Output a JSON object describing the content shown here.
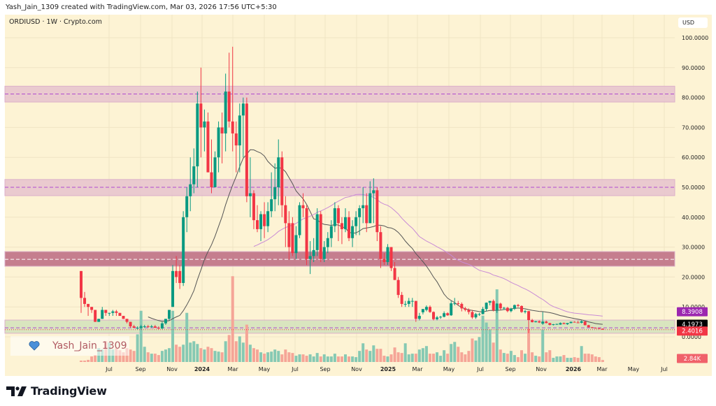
{
  "header": {
    "credit": "Yash_Jain_1309 created with TradingView.com, Mar 03, 2026 17:56 UTC+5:30",
    "symbol": "ORDIUSD · 1W · Crypto.com",
    "currency": "USD"
  },
  "watermark": {
    "text": "Yash_Jain_1309",
    "icon": "blue-heart-icon"
  },
  "footer": {
    "brand": "TradingView",
    "icon": "tradingview-logo-icon"
  },
  "colors": {
    "up": "#089981",
    "down": "#f23645",
    "up_volume": "#86c9b3",
    "down_volume": "#f5a597",
    "sma_fast": "#555555",
    "sma_slow": "#c98bd6",
    "background": "#fdf3d4"
  },
  "chart_data": {
    "type": "candlestick",
    "title": "ORDIUSD · 1W · Crypto.com",
    "ylabel": "USD",
    "ylim": [
      0,
      100
    ],
    "grid": true,
    "y_ticks": [
      "100.0000",
      "90.0000",
      "80.0000",
      "70.0000",
      "60.0000",
      "50.0000",
      "40.0000",
      "30.0000",
      "20.0000",
      "10.0000",
      "0.0000"
    ],
    "x_ticks": [
      "Jul",
      "Sep",
      "Nov",
      "2024",
      "Mar",
      "May",
      "Jul",
      "Sep",
      "Nov",
      "2025",
      "Mar",
      "May",
      "Jul",
      "Sep",
      "Nov",
      "2026",
      "Mar",
      "May",
      "Jul"
    ],
    "moving_averages": [
      {
        "period": 20,
        "color": "#555555",
        "last": "4.1973"
      },
      {
        "period": 50,
        "color": "#c98bd6",
        "last": "8.3908"
      }
    ],
    "last_price": "2.4016",
    "last_volume": "2.84K",
    "zones": [
      {
        "low": 78.5,
        "high": 83.8,
        "mid": 81.2,
        "fill": "#e8c6cf",
        "line": "#b04ad0"
      },
      {
        "low": 47.2,
        "high": 52.6,
        "mid": 50.0,
        "fill": "#e8c6cf",
        "line": "#b04ad0"
      },
      {
        "low": 23.6,
        "high": 28.5,
        "mid": 25.9,
        "fill": "#bf7287",
        "line": "#ffffff"
      },
      {
        "low": 1.2,
        "high": 5.6,
        "mid": 3.0,
        "fill": "#d6e4bd",
        "line": "#b04ad0"
      }
    ],
    "candles": [
      [
        22,
        22,
        8,
        13
      ],
      [
        13,
        15,
        10,
        11
      ],
      [
        11,
        11,
        7,
        10
      ],
      [
        10,
        10,
        8,
        9
      ],
      [
        9,
        9,
        5,
        5
      ],
      [
        5,
        6,
        5,
        6
      ],
      [
        6,
        10,
        6,
        9
      ],
      [
        9,
        9,
        7,
        8
      ],
      [
        8,
        8,
        7,
        8
      ],
      [
        8,
        9,
        7,
        8.5
      ],
      [
        8.5,
        9,
        7,
        8
      ],
      [
        8,
        8,
        7,
        7
      ],
      [
        7,
        7,
        6,
        6
      ],
      [
        6,
        6,
        4.5,
        5
      ],
      [
        5,
        5,
        3,
        3.5
      ],
      [
        3.5,
        4,
        3,
        3
      ],
      [
        3,
        3.5,
        2.5,
        3
      ],
      [
        3,
        4,
        2.5,
        3.5
      ],
      [
        3.5,
        4,
        3,
        3.5
      ],
      [
        3.5,
        4,
        3,
        3.3
      ],
      [
        3.3,
        4,
        3,
        3.5
      ],
      [
        3.5,
        4,
        3,
        3
      ],
      [
        3,
        3.5,
        2.5,
        2.8
      ],
      [
        2.8,
        5,
        2.5,
        4.5
      ],
      [
        4.5,
        6,
        4,
        6
      ],
      [
        6,
        8,
        5.5,
        9
      ],
      [
        10,
        24,
        10,
        22
      ],
      [
        22,
        27,
        18,
        20
      ],
      [
        22,
        24,
        16,
        18
      ],
      [
        18,
        42,
        17,
        40
      ],
      [
        40,
        50,
        35,
        47
      ],
      [
        47,
        60,
        42,
        51
      ],
      [
        51,
        63,
        48,
        57
      ],
      [
        57,
        82,
        50,
        78
      ],
      [
        78,
        90,
        60,
        70
      ],
      [
        70,
        76,
        62,
        72
      ],
      [
        72,
        75,
        55,
        55
      ],
      [
        55,
        66,
        48,
        50
      ],
      [
        50,
        62,
        50,
        60
      ],
      [
        60,
        72,
        55,
        70
      ],
      [
        70,
        75,
        58,
        68
      ],
      [
        68,
        88,
        62,
        82
      ],
      [
        82,
        95,
        70,
        72
      ],
      [
        72,
        97,
        62,
        68
      ],
      [
        68,
        72,
        55,
        64
      ],
      [
        64,
        78,
        55,
        74
      ],
      [
        74,
        80,
        60,
        78
      ],
      [
        78,
        80,
        45,
        47
      ],
      [
        47,
        60,
        40,
        48
      ],
      [
        48,
        49,
        36,
        39
      ],
      [
        39,
        44,
        35,
        36
      ],
      [
        36,
        42,
        32,
        41
      ],
      [
        41,
        45,
        33,
        37
      ],
      [
        37,
        45,
        35,
        42
      ],
      [
        42,
        55,
        40,
        46
      ],
      [
        46,
        58,
        42,
        50
      ],
      [
        50,
        66,
        44,
        60
      ],
      [
        60,
        62,
        40,
        44
      ],
      [
        44,
        47,
        30,
        38
      ],
      [
        38,
        42,
        26,
        30
      ],
      [
        38,
        40,
        27,
        28
      ],
      [
        28,
        37,
        26,
        34
      ],
      [
        34,
        45,
        33,
        44
      ],
      [
        44,
        48,
        40,
        43
      ],
      [
        43,
        44,
        24,
        26
      ],
      [
        26,
        32,
        21,
        27
      ],
      [
        27,
        33,
        25,
        29
      ],
      [
        29,
        43,
        27,
        41
      ],
      [
        41,
        42,
        25,
        26
      ],
      [
        26,
        32,
        25,
        30
      ],
      [
        30,
        35,
        28,
        33
      ],
      [
        33,
        39,
        30,
        37
      ],
      [
        37,
        45,
        35,
        43
      ],
      [
        43,
        44,
        32,
        38
      ],
      [
        38,
        40,
        31,
        36
      ],
      [
        36,
        43,
        35,
        40
      ],
      [
        40,
        42,
        32,
        33
      ],
      [
        33,
        39,
        30,
        37
      ],
      [
        37,
        42,
        34,
        40
      ],
      [
        40,
        44,
        34,
        43
      ],
      [
        43,
        50,
        38,
        44
      ],
      [
        44,
        48,
        35,
        38
      ],
      [
        38,
        52,
        38,
        48
      ],
      [
        48,
        53,
        38,
        49
      ],
      [
        49,
        50,
        32,
        35
      ],
      [
        35,
        37,
        23,
        26
      ],
      [
        26,
        28,
        24,
        25
      ],
      [
        25,
        31,
        24,
        30
      ],
      [
        30,
        30,
        22,
        23
      ],
      [
        23,
        25,
        19,
        19
      ],
      [
        19,
        20,
        13,
        14
      ],
      [
        14,
        15,
        10,
        11
      ],
      [
        11,
        12,
        10,
        11
      ],
      [
        11,
        13,
        10,
        12
      ],
      [
        12,
        13,
        10,
        12
      ],
      [
        12,
        12,
        5,
        6
      ],
      [
        6,
        8,
        5.5,
        7
      ],
      [
        8.2,
        9,
        7.5,
        9.3
      ],
      [
        9,
        10.5,
        8.5,
        10
      ],
      [
        10,
        10.5,
        8,
        8.3
      ],
      [
        8.3,
        8.5,
        5.5,
        5.9
      ],
      [
        5.9,
        7,
        5.5,
        6.5
      ],
      [
        6.5,
        7,
        6,
        6.7
      ],
      [
        6.7,
        8.5,
        6.5,
        7.9
      ],
      [
        7.9,
        8.2,
        7,
        7.2
      ],
      [
        7.2,
        12,
        7,
        11.2
      ],
      [
        11.2,
        13,
        10.5,
        11.2
      ],
      [
        11.2,
        12,
        10.5,
        11
      ],
      [
        11,
        11.5,
        8.5,
        9.5
      ],
      [
        9.5,
        10,
        8.5,
        9
      ],
      [
        9,
        9.5,
        7.5,
        8.3
      ],
      [
        8.3,
        9,
        6,
        6.5
      ],
      [
        6.5,
        8,
        6,
        7.6
      ],
      [
        7.6,
        8,
        7,
        7.6
      ],
      [
        7.6,
        10,
        7.5,
        9.3
      ],
      [
        9.3,
        11.5,
        8.5,
        11.4
      ],
      [
        11.4,
        12,
        10.5,
        12
      ],
      [
        12,
        12.5,
        8.5,
        8.9
      ],
      [
        8.9,
        11.2,
        8,
        11.1
      ],
      [
        11.1,
        11.4,
        9,
        9.5
      ],
      [
        9.5,
        10,
        9,
        9.7
      ],
      [
        9.7,
        10,
        8.2,
        8.6
      ],
      [
        8.6,
        9.7,
        8.2,
        9.4
      ],
      [
        9.4,
        10.8,
        9,
        10.6
      ],
      [
        10.6,
        11,
        10,
        10.3
      ],
      [
        10.3,
        10.5,
        8,
        8.3
      ],
      [
        8.3,
        9,
        7.8,
        8.6
      ],
      [
        8.6,
        8.6,
        1.2,
        5.6
      ],
      [
        5.6,
        6,
        4.8,
        4.9
      ],
      [
        4.9,
        5.3,
        4.8,
        5.2
      ],
      [
        5.2,
        5.5,
        4.6,
        4.8
      ],
      [
        4.4,
        8.3,
        4,
        5.1
      ],
      [
        5.1,
        5.4,
        4.5,
        4.6
      ],
      [
        4.6,
        4.7,
        3.8,
        3.97
      ],
      [
        3.97,
        4.3,
        3.8,
        4.2
      ],
      [
        4.2,
        4.4,
        4,
        4.3
      ],
      [
        4.1,
        4.8,
        4,
        4.6
      ],
      [
        4.6,
        4.8,
        4.2,
        4.3
      ],
      [
        4.2,
        4.6,
        4,
        4.6
      ],
      [
        4.6,
        5.1,
        4.5,
        5
      ],
      [
        5,
        5.2,
        4.8,
        4.9
      ],
      [
        4.8,
        5.4,
        4.6,
        4.7
      ],
      [
        4.7,
        5.5,
        4.5,
        5.2
      ],
      [
        5.1,
        5.3,
        3.8,
        3.9
      ],
      [
        3.9,
        4,
        3.1,
        3.2
      ],
      [
        3.2,
        3.3,
        2.8,
        3
      ],
      [
        3,
        3.1,
        2.8,
        2.9
      ],
      [
        2.9,
        3,
        2.6,
        2.7
      ],
      [
        2.7,
        2.8,
        2.4,
        2.4016
      ]
    ],
    "volume_k": [
      2,
      2,
      3,
      8,
      10,
      20,
      18,
      30,
      28,
      18,
      20,
      17,
      14,
      20,
      18,
      16,
      40,
      74,
      22,
      14,
      12,
      12,
      10,
      16,
      18,
      20,
      74,
      25,
      22,
      25,
      71,
      28,
      30,
      26,
      20,
      18,
      22,
      20,
      16,
      15,
      14,
      30,
      39,
      124,
      30,
      37,
      28,
      54,
      25,
      20,
      18,
      14,
      12,
      14,
      15,
      18,
      16,
      11,
      18,
      14,
      13,
      9,
      11,
      11,
      9,
      11,
      8,
      13,
      8,
      11,
      8,
      8,
      12,
      8,
      8,
      11,
      8,
      8,
      7,
      16,
      27,
      18,
      16,
      24,
      19,
      19,
      9,
      8,
      11,
      21,
      14,
      13,
      27,
      11,
      12,
      12,
      18,
      20,
      23,
      12,
      12,
      14,
      9,
      17,
      12,
      26,
      29,
      22,
      14,
      11,
      16,
      34,
      31,
      36,
      67,
      57,
      47,
      28,
      105,
      18,
      13,
      12,
      16,
      10,
      7,
      17,
      12,
      48,
      14,
      9,
      8,
      47,
      14,
      17,
      6,
      8,
      8,
      10,
      6,
      6,
      7,
      6,
      23,
      12,
      12,
      11,
      8,
      7,
      2.84
    ]
  }
}
